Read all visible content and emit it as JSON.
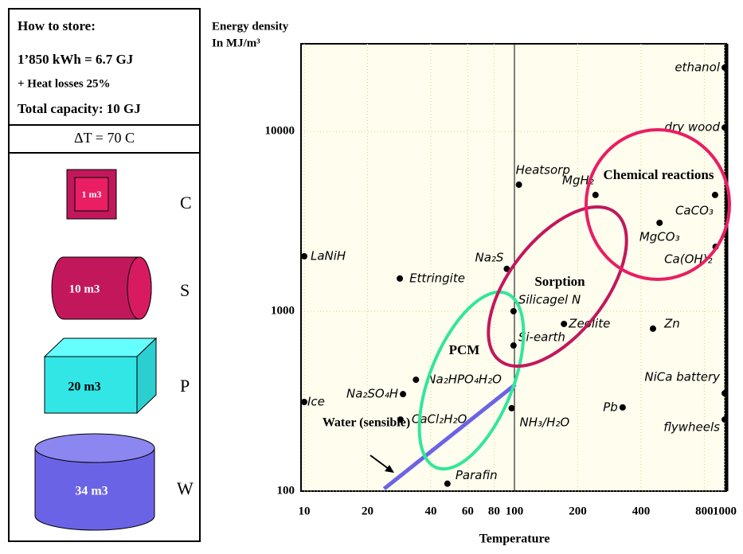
{
  "panel": {
    "lines": [
      "How to store:",
      "1’850 kWh = 6.7 GJ",
      "+ Heat losses 25%",
      "Total capacity: 10 GJ"
    ],
    "delta": "ΔT = 70 C",
    "items": [
      {
        "label": "1 m3",
        "letter": "C"
      },
      {
        "label": "10 m3",
        "letter": "S"
      },
      {
        "label": "20 m3",
        "letter": "P"
      },
      {
        "label": "34 m3",
        "letter": "W"
      }
    ]
  },
  "chart_data": {
    "type": "scatter",
    "ylabel": [
      "Energy density",
      "In MJ/m³"
    ],
    "xlabel": "Temperature",
    "xscale": "log",
    "yscale": "log",
    "grid": true,
    "xlim": [
      10,
      1000
    ],
    "ylim": [
      100,
      30000
    ],
    "xticks": [
      10,
      20,
      40,
      60,
      80,
      100,
      200,
      400,
      800,
      1000
    ],
    "yticks": [
      100,
      1000,
      10000
    ],
    "points": [
      {
        "name": "ethanol",
        "x": 1000,
        "y": 22600
      },
      {
        "name": "dry wood",
        "x": 1000,
        "y": 10500
      },
      {
        "name": "Heatsorp",
        "x": 105,
        "y": 5050
      },
      {
        "name": "MgH₂",
        "x": 243,
        "y": 4430
      },
      {
        "name": "CaCO₃",
        "x": 900,
        "y": 4430
      },
      {
        "name": "MgCO₃",
        "x": 490,
        "y": 3100
      },
      {
        "name": "Ca(OH)₂",
        "x": 905,
        "y": 2280
      },
      {
        "name": "LaNiH",
        "x": 10,
        "y": 2020
      },
      {
        "name": "Na₂S",
        "x": 92,
        "y": 1720
      },
      {
        "name": "Ettringite",
        "x": 28.5,
        "y": 1520
      },
      {
        "name": "Silicagel N",
        "x": 99,
        "y": 1000
      },
      {
        "name": "Zeolite",
        "x": 172,
        "y": 850
      },
      {
        "name": "Zn",
        "x": 456,
        "y": 800
      },
      {
        "name": "Si-earth",
        "x": 99,
        "y": 645
      },
      {
        "name": "Na₂HPO₄H₂O",
        "x": 34,
        "y": 416
      },
      {
        "name": "Na₂SO₄H",
        "x": 29.5,
        "y": 346
      },
      {
        "name": "NiCa battery",
        "x": 1000,
        "y": 350
      },
      {
        "name": "Ice",
        "x": 10,
        "y": 313
      },
      {
        "name": "Pb",
        "x": 327,
        "y": 292
      },
      {
        "name": "NH₃/H₂O",
        "x": 97,
        "y": 289
      },
      {
        "name": "CaCl₂H₂O",
        "x": 28.7,
        "y": 250
      },
      {
        "name": "flywheels",
        "x": 1000,
        "y": 250
      },
      {
        "name": "Parafin",
        "x": 48,
        "y": 110
      }
    ],
    "line": {
      "color": "#6b63e6",
      "x": [
        24,
        101
      ],
      "y": [
        103,
        392
      ]
    },
    "annotations": [
      "Chemical reactions",
      "Sorption",
      "PCM",
      "Water (sensible)"
    ]
  }
}
